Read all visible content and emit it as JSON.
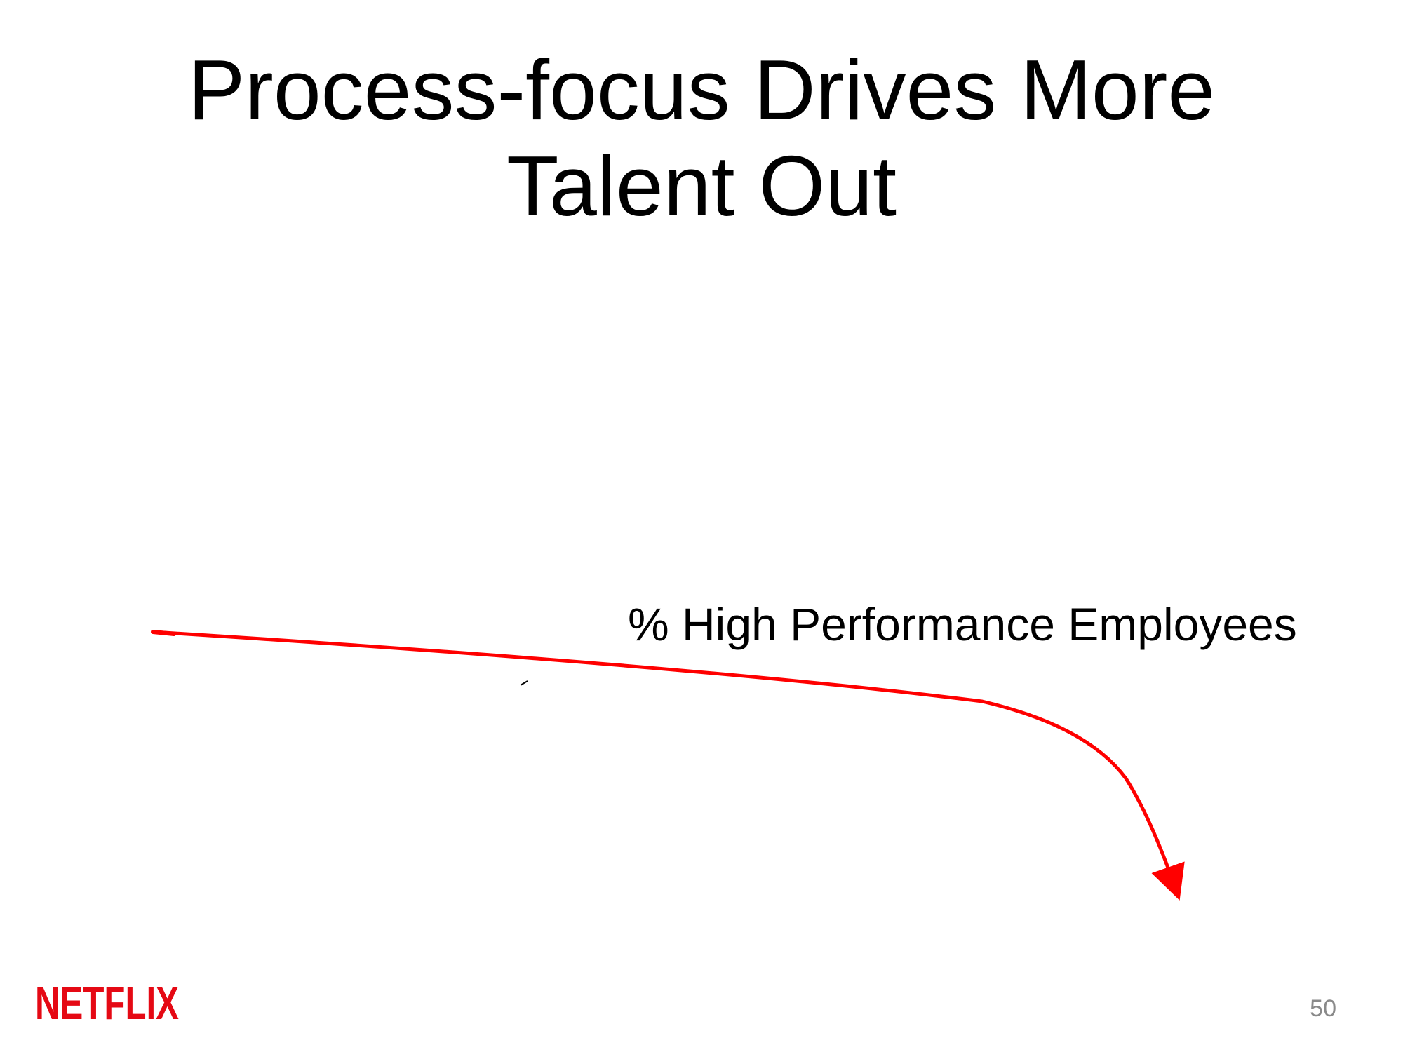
{
  "slide": {
    "title": "Process-focus Drives More Talent Out",
    "curve_label": "% High Performance Employees",
    "page_number": "50"
  },
  "logo": {
    "text": "NETFLIX",
    "color": "#e50914"
  },
  "curve": {
    "color": "#ff0000",
    "trend": "declining"
  }
}
